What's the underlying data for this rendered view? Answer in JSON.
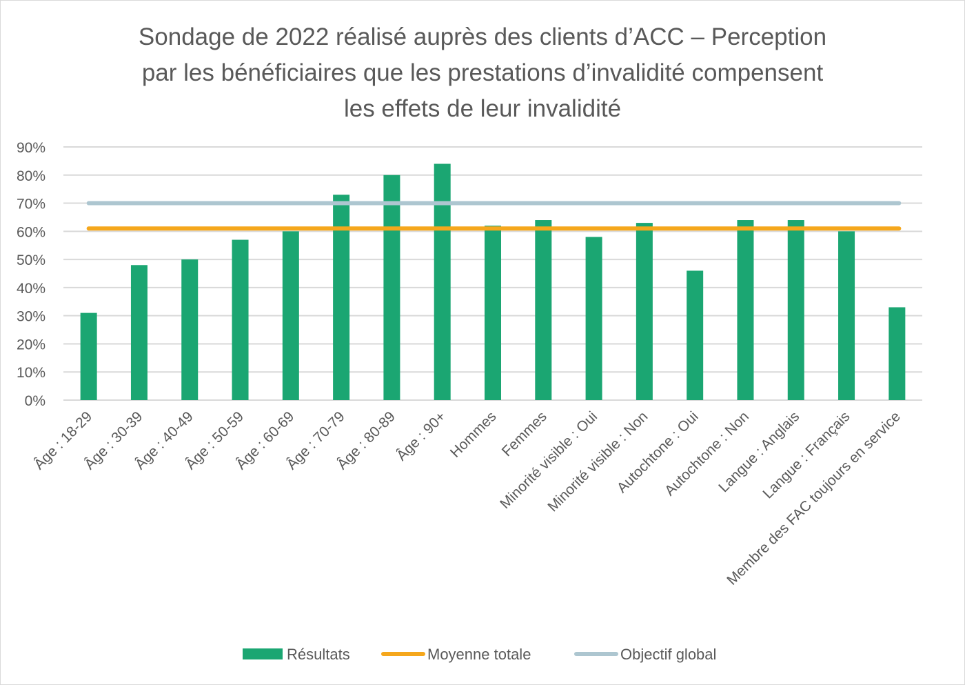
{
  "chart_data": {
    "type": "bar",
    "title_lines": [
      "Sondage de 2022 réalisé auprès des clients d’ACC – Perception",
      "par les bénéficiaires que les prestations d’invalidité compensent",
      "les effets de leur invalidité"
    ],
    "categories": [
      "Âge : 18-29",
      "Âge : 30-39",
      "Âge : 40-49",
      "Âge : 50-59",
      "Âge : 60-69",
      "Âge : 70-79",
      "Âge : 80-89",
      "Âge : 90+",
      "Hommes",
      "Femmes",
      "Minorité visible : Oui",
      "Minorité visible : Non",
      "Autochtone : Oui",
      "Autochtone : Non",
      "Langue : Anglais",
      "Langue : Français",
      "Membre des FAC toujours en service"
    ],
    "series": [
      {
        "name": "Résultats",
        "type": "bar",
        "color": "#1ba672",
        "values": [
          31,
          48,
          50,
          57,
          60,
          73,
          80,
          84,
          62,
          64,
          58,
          63,
          46,
          64,
          64,
          60,
          33
        ]
      },
      {
        "name": "Moyenne totale",
        "type": "line",
        "color": "#f5a71c",
        "value": 61
      },
      {
        "name": "Objectif global",
        "type": "line",
        "color": "#adc6d0",
        "value": 70
      }
    ],
    "yticks": [
      "0%",
      "10%",
      "20%",
      "30%",
      "40%",
      "50%",
      "60%",
      "70%",
      "80%",
      "90%"
    ],
    "ylim": [
      0,
      90
    ],
    "xlabel": "",
    "ylabel": "",
    "grid": true,
    "legend_position": "bottom"
  }
}
